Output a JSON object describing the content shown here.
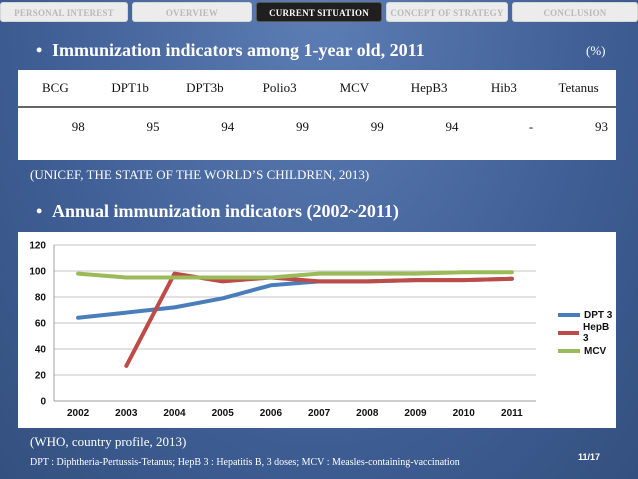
{
  "nav": {
    "tabs": [
      {
        "label": "PERSONAL INTEREST",
        "active": false
      },
      {
        "label": "OVERVIEW",
        "active": false
      },
      {
        "label": "CURRENT SITUATION",
        "active": true
      },
      {
        "label": "CONCEPT OF STRATEGY",
        "active": false
      },
      {
        "label": "CONCLUSION",
        "active": false
      }
    ]
  },
  "section1": {
    "bullet": "•",
    "title": "Immunization indicators among 1-year old, 2011",
    "unit": "(%)",
    "table": {
      "headers": [
        "BCG",
        "DPT1b",
        "DPT3b",
        "Polio3",
        "MCV",
        "HepB3",
        "Hib3",
        "Tetanus"
      ],
      "values": [
        "98",
        "95",
        "94",
        "99",
        "99",
        "94",
        "-",
        "93"
      ]
    },
    "source": "(UNICEF, THE STATE OF THE WORLD’S CHILDREN, 2013)"
  },
  "section2": {
    "bullet": "•",
    "title": "Annual immunization indicators (2002~2011)",
    "source": "(WHO, country profile, 2013)"
  },
  "chart_data": {
    "type": "line",
    "x": [
      "2002",
      "2003",
      "2004",
      "2005",
      "2006",
      "2007",
      "2008",
      "2009",
      "2010",
      "2011"
    ],
    "series": [
      {
        "name": "DPT 3",
        "color": "#4a7ebb",
        "values": [
          64,
          68,
          72,
          79,
          89,
          92,
          92,
          93,
          93,
          94
        ]
      },
      {
        "name": "HepB 3",
        "color": "#be4b48",
        "values": [
          null,
          27,
          98,
          92,
          95,
          92,
          92,
          93,
          93,
          94
        ]
      },
      {
        "name": "MCV",
        "color": "#9bbb59",
        "values": [
          98,
          95,
          95,
          95,
          95,
          98,
          98,
          98,
          99,
          99
        ]
      }
    ],
    "ylim": [
      0,
      120
    ],
    "yticks": [
      "0",
      "20",
      "40",
      "60",
      "80",
      "100",
      "120"
    ],
    "grid": true,
    "legend_position": "right"
  },
  "footnote": "DPT : Diphtheria-Pertussis-Tetanus; HepB 3 : Hepatitis B, 3 doses; MCV : Measles-containing-vaccination",
  "page": "11/17"
}
